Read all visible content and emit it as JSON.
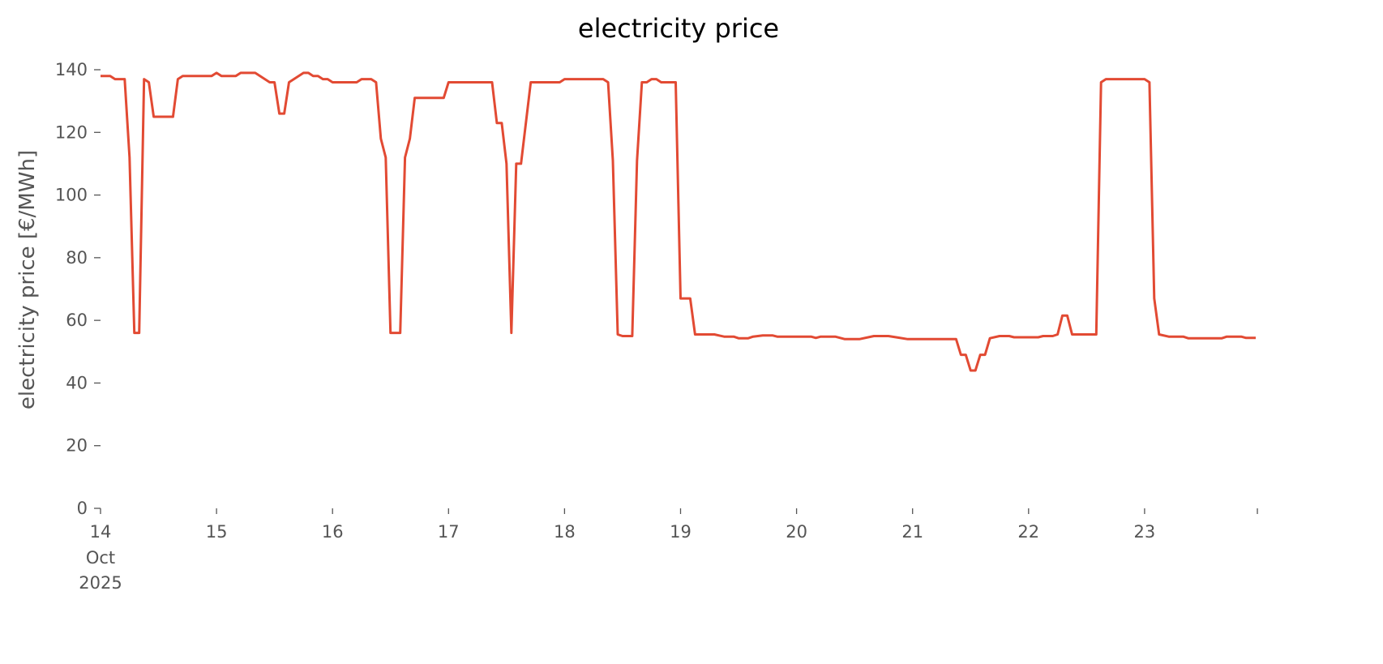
{
  "chart_data": {
    "type": "line",
    "title": "electricity price",
    "xlabel": "",
    "ylabel": "electricity price [€/MWh]",
    "ylim": [
      0,
      140
    ],
    "xlim": [
      "2025-10-14T00:00",
      "2025-10-23T23:00"
    ],
    "grid": false,
    "yticks": [
      "0",
      "20",
      "40",
      "60",
      "80",
      "100",
      "120",
      "140"
    ],
    "xticks": [
      "14",
      "15",
      "16",
      "17",
      "18",
      "19",
      "20",
      "21",
      "22",
      "23"
    ],
    "xtick_first_extra": [
      "Oct",
      "2025"
    ],
    "line_color": "#E24A33",
    "series": [
      {
        "points": [
          [
            "2025-10-14T00:00",
            138
          ],
          [
            "2025-10-14T02:00",
            138
          ],
          [
            "2025-10-14T03:00",
            137
          ],
          [
            "2025-10-14T05:00",
            137
          ],
          [
            "2025-10-14T06:00",
            112
          ],
          [
            "2025-10-14T07:00",
            56
          ],
          [
            "2025-10-14T08:00",
            56
          ],
          [
            "2025-10-14T09:00",
            137
          ],
          [
            "2025-10-14T10:00",
            136
          ],
          [
            "2025-10-14T11:00",
            125
          ],
          [
            "2025-10-14T15:00",
            125
          ],
          [
            "2025-10-14T16:00",
            137
          ],
          [
            "2025-10-14T17:00",
            138
          ],
          [
            "2025-10-14T23:00",
            138
          ],
          [
            "2025-10-15T00:00",
            139
          ],
          [
            "2025-10-15T01:00",
            138
          ],
          [
            "2025-10-15T04:00",
            138
          ],
          [
            "2025-10-15T05:00",
            139
          ],
          [
            "2025-10-15T08:00",
            139
          ],
          [
            "2025-10-15T11:00",
            136
          ],
          [
            "2025-10-15T12:00",
            136
          ],
          [
            "2025-10-15T13:00",
            126
          ],
          [
            "2025-10-15T14:00",
            126
          ],
          [
            "2025-10-15T15:00",
            136
          ],
          [
            "2025-10-15T18:00",
            139
          ],
          [
            "2025-10-15T19:00",
            139
          ],
          [
            "2025-10-15T20:00",
            138
          ],
          [
            "2025-10-15T21:00",
            138
          ],
          [
            "2025-10-15T22:00",
            137
          ],
          [
            "2025-10-15T23:00",
            137
          ],
          [
            "2025-10-16T00:00",
            136
          ],
          [
            "2025-10-16T05:00",
            136
          ],
          [
            "2025-10-16T06:00",
            137
          ],
          [
            "2025-10-16T08:00",
            137
          ],
          [
            "2025-10-16T09:00",
            136
          ],
          [
            "2025-10-16T10:00",
            118
          ],
          [
            "2025-10-16T11:00",
            112
          ],
          [
            "2025-10-16T12:00",
            56
          ],
          [
            "2025-10-16T14:00",
            56
          ],
          [
            "2025-10-16T15:00",
            112
          ],
          [
            "2025-10-16T16:00",
            118
          ],
          [
            "2025-10-16T17:00",
            131
          ],
          [
            "2025-10-16T23:00",
            131
          ],
          [
            "2025-10-17T00:00",
            136
          ],
          [
            "2025-10-17T09:00",
            136
          ],
          [
            "2025-10-17T10:00",
            123
          ],
          [
            "2025-10-17T11:00",
            123
          ],
          [
            "2025-10-17T12:00",
            110
          ],
          [
            "2025-10-17T13:00",
            56
          ],
          [
            "2025-10-17T14:00",
            110
          ],
          [
            "2025-10-17T15:00",
            110
          ],
          [
            "2025-10-17T17:00",
            136
          ],
          [
            "2025-10-17T23:00",
            136
          ],
          [
            "2025-10-18T00:00",
            137
          ],
          [
            "2025-10-18T08:00",
            137
          ],
          [
            "2025-10-18T09:00",
            136
          ],
          [
            "2025-10-18T10:00",
            111
          ],
          [
            "2025-10-18T11:00",
            55.5
          ],
          [
            "2025-10-18T12:00",
            55
          ],
          [
            "2025-10-18T14:00",
            55
          ],
          [
            "2025-10-18T15:00",
            111
          ],
          [
            "2025-10-18T16:00",
            136
          ],
          [
            "2025-10-18T17:00",
            136
          ],
          [
            "2025-10-18T18:00",
            137
          ],
          [
            "2025-10-18T19:00",
            137
          ],
          [
            "2025-10-18T20:00",
            136
          ],
          [
            "2025-10-18T23:00",
            136
          ],
          [
            "2025-10-19T00:00",
            67
          ],
          [
            "2025-10-19T02:00",
            67
          ],
          [
            "2025-10-19T03:00",
            55.5
          ],
          [
            "2025-10-19T07:00",
            55.5
          ],
          [
            "2025-10-19T09:00",
            54.8
          ],
          [
            "2025-10-19T11:00",
            54.8
          ],
          [
            "2025-10-19T12:00",
            54.3
          ],
          [
            "2025-10-19T14:00",
            54.3
          ],
          [
            "2025-10-19T15:00",
            54.8
          ],
          [
            "2025-10-19T17:00",
            55.2
          ],
          [
            "2025-10-19T19:00",
            55.2
          ],
          [
            "2025-10-19T20:00",
            54.8
          ],
          [
            "2025-10-20T03:00",
            54.8
          ],
          [
            "2025-10-20T04:00",
            54.4
          ],
          [
            "2025-10-20T05:00",
            54.8
          ],
          [
            "2025-10-20T08:00",
            54.8
          ],
          [
            "2025-10-20T10:00",
            54
          ],
          [
            "2025-10-20T13:00",
            54
          ],
          [
            "2025-10-20T16:00",
            55
          ],
          [
            "2025-10-20T19:00",
            55
          ],
          [
            "2025-10-20T21:00",
            54.5
          ],
          [
            "2025-10-20T23:00",
            54
          ],
          [
            "2025-10-21T09:00",
            54
          ],
          [
            "2025-10-21T10:00",
            49
          ],
          [
            "2025-10-21T11:00",
            49
          ],
          [
            "2025-10-21T12:00",
            44
          ],
          [
            "2025-10-21T13:00",
            44
          ],
          [
            "2025-10-21T14:00",
            49
          ],
          [
            "2025-10-21T15:00",
            49
          ],
          [
            "2025-10-21T16:00",
            54.3
          ],
          [
            "2025-10-21T18:00",
            55
          ],
          [
            "2025-10-21T20:00",
            55
          ],
          [
            "2025-10-21T21:00",
            54.6
          ],
          [
            "2025-10-22T02:00",
            54.6
          ],
          [
            "2025-10-22T03:00",
            55
          ],
          [
            "2025-10-22T05:00",
            55
          ],
          [
            "2025-10-22T06:00",
            55.5
          ],
          [
            "2025-10-22T07:00",
            61.5
          ],
          [
            "2025-10-22T08:00",
            61.5
          ],
          [
            "2025-10-22T09:00",
            55.5
          ],
          [
            "2025-10-22T14:00",
            55.5
          ],
          [
            "2025-10-22T15:00",
            136
          ],
          [
            "2025-10-22T16:00",
            137
          ],
          [
            "2025-10-23T00:00",
            137
          ],
          [
            "2025-10-23T01:00",
            136
          ],
          [
            "2025-10-23T02:00",
            67
          ],
          [
            "2025-10-23T03:00",
            55.5
          ],
          [
            "2025-10-23T05:00",
            54.8
          ],
          [
            "2025-10-23T08:00",
            54.8
          ],
          [
            "2025-10-23T09:00",
            54.3
          ],
          [
            "2025-10-23T16:00",
            54.3
          ],
          [
            "2025-10-23T17:00",
            54.8
          ],
          [
            "2025-10-23T20:00",
            54.8
          ],
          [
            "2025-10-23T21:00",
            54.4
          ],
          [
            "2025-10-23T23:00",
            54.4
          ]
        ]
      }
    ]
  }
}
